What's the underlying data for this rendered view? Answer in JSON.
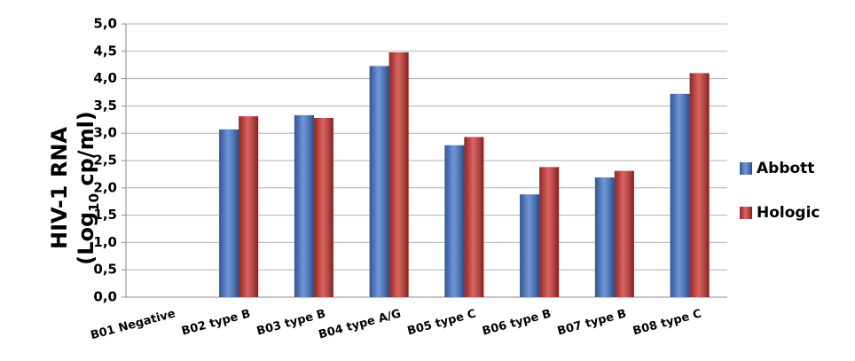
{
  "chart_data": {
    "type": "bar",
    "ylabel_line1": "HIV-1 RNA",
    "ylabel_line2": {
      "before": "(Log",
      "sub": "10",
      "after": " cp/ml)"
    },
    "categories": [
      "B01 Negative",
      "B02 type B",
      "B03 type B",
      "B04 type A/G",
      "B05 type C",
      "B06 type B",
      "B07 type B",
      "B08 type C"
    ],
    "series": [
      {
        "name": "Abbott",
        "color": "#3f72c8",
        "values": [
          0,
          3.07,
          3.33,
          4.23,
          2.78,
          1.88,
          2.19,
          3.72
        ]
      },
      {
        "name": "Hologic",
        "color": "#c8302c",
        "values": [
          0,
          3.31,
          3.28,
          4.48,
          2.93,
          2.38,
          2.31,
          4.1
        ]
      }
    ],
    "ylim": [
      0,
      5
    ],
    "yticks": [
      {
        "value": 0,
        "label": "0,0"
      },
      {
        "value": 0.5,
        "label": "0,5"
      },
      {
        "value": 1,
        "label": "1,0"
      },
      {
        "value": 1.5,
        "label": "1,5"
      },
      {
        "value": 2,
        "label": "2,0"
      },
      {
        "value": 2.5,
        "label": "2,5"
      },
      {
        "value": 3,
        "label": "3,0"
      },
      {
        "value": 3.5,
        "label": "3,5"
      },
      {
        "value": 4,
        "label": "4,0"
      },
      {
        "value": 4.5,
        "label": "4,5"
      },
      {
        "value": 5,
        "label": "5,0"
      }
    ],
    "grid": true,
    "legend": "right"
  }
}
